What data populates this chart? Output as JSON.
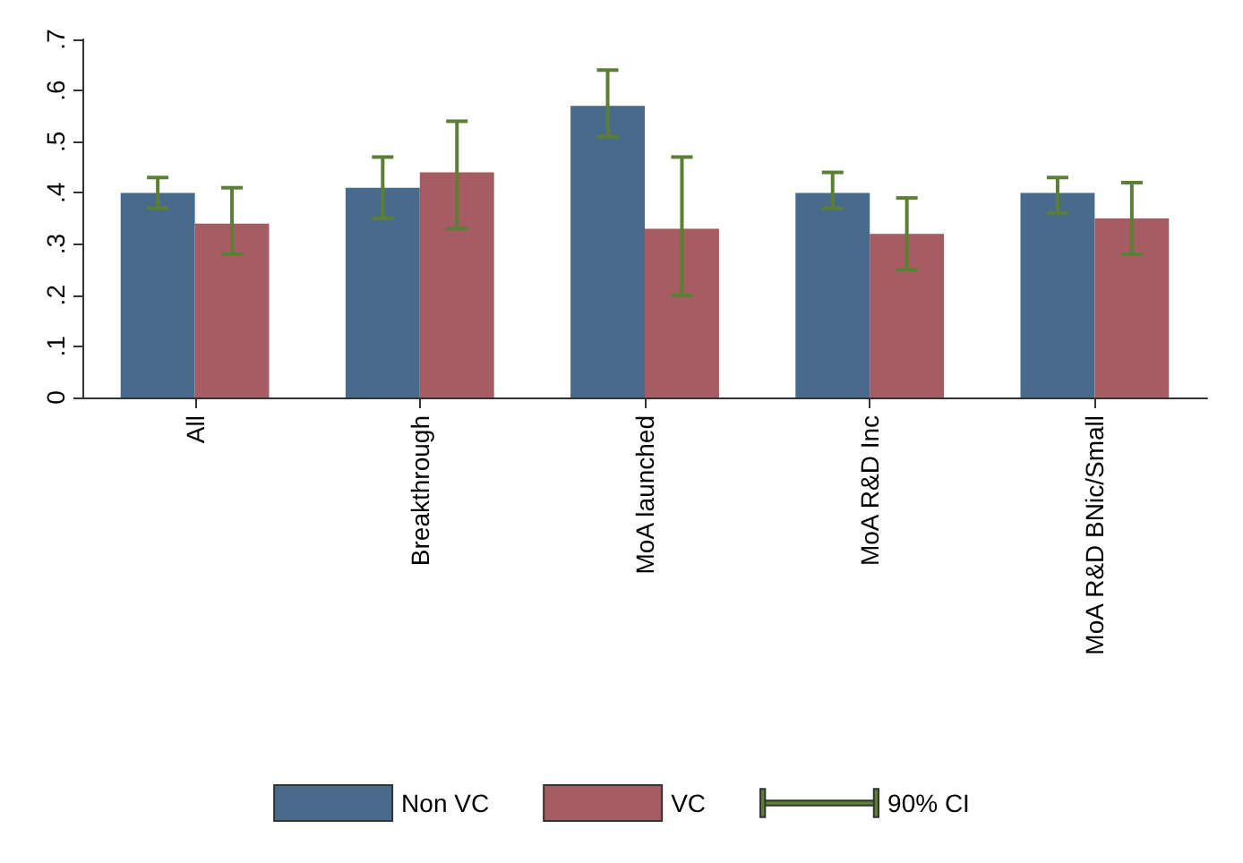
{
  "chart_data": {
    "type": "bar",
    "categories": [
      "All",
      "Breakthrough",
      "MoA launched",
      "MoA R&D Inc",
      "MoA R&D BNic/Small"
    ],
    "series": [
      {
        "name": "Non VC",
        "color": "#486b8c",
        "values": [
          0.4,
          0.41,
          0.57,
          0.4,
          0.4
        ],
        "errors": [
          [
            0.37,
            0.43
          ],
          [
            0.35,
            0.47
          ],
          [
            0.51,
            0.64
          ],
          [
            0.37,
            0.44
          ],
          [
            0.36,
            0.43
          ]
        ]
      },
      {
        "name": "VC",
        "color": "#a55c62",
        "values": [
          0.34,
          0.44,
          0.33,
          0.32,
          0.35
        ],
        "errors": [
          [
            0.28,
            0.41
          ],
          [
            0.33,
            0.54
          ],
          [
            0.2,
            0.47
          ],
          [
            0.25,
            0.39
          ],
          [
            0.28,
            0.42
          ]
        ]
      }
    ],
    "annotations": [
      "90% CI"
    ],
    "ylim": [
      0,
      0.7
    ],
    "yticks": [
      0,
      {
        "value": 0.1,
        "label": ".1"
      },
      {
        "value": 0.2,
        "label": ".2"
      },
      {
        "value": 0.3,
        "label": ".3"
      },
      {
        "value": 0.4,
        "label": ".4"
      },
      {
        "value": 0.5,
        "label": ".5"
      },
      {
        "value": 0.6,
        "label": ".6"
      },
      {
        "value": 0.7,
        "label": ".7"
      }
    ],
    "grid": false,
    "legend": "bottom"
  }
}
